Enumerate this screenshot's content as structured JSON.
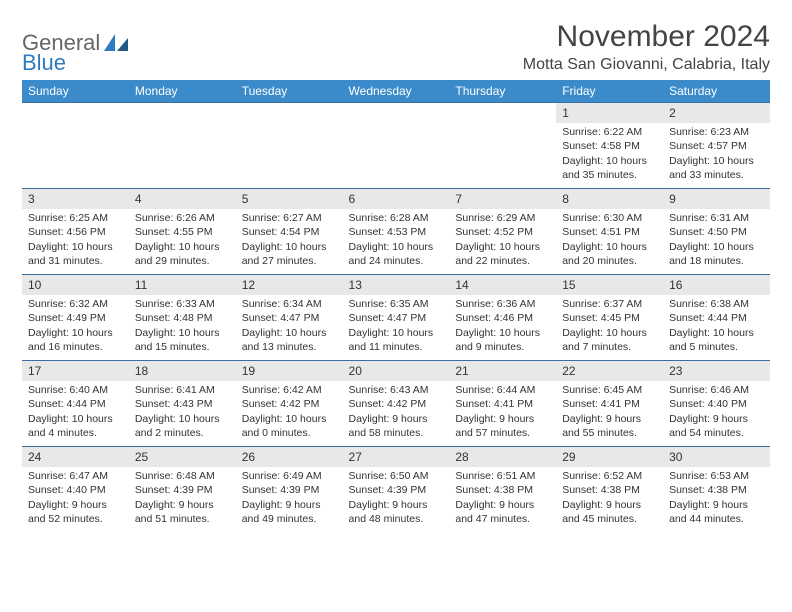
{
  "logo": {
    "line1": "General",
    "line2": "Blue"
  },
  "title": "November 2024",
  "location": "Motta San Giovanni, Calabria, Italy",
  "colors": {
    "header_bg": "#3b8bca",
    "header_fg": "#ffffff",
    "row_border": "#3b6ea0",
    "daynum_bg": "#e8e8e8",
    "logo_blue": "#2f7bbf"
  },
  "weekdays": [
    "Sunday",
    "Monday",
    "Tuesday",
    "Wednesday",
    "Thursday",
    "Friday",
    "Saturday"
  ],
  "weeks": [
    [
      {
        "day": "",
        "lines": [
          "",
          "",
          ""
        ]
      },
      {
        "day": "",
        "lines": [
          "",
          "",
          ""
        ]
      },
      {
        "day": "",
        "lines": [
          "",
          "",
          ""
        ]
      },
      {
        "day": "",
        "lines": [
          "",
          "",
          ""
        ]
      },
      {
        "day": "",
        "lines": [
          "",
          "",
          ""
        ]
      },
      {
        "day": "1",
        "lines": [
          "Sunrise: 6:22 AM",
          "Sunset: 4:58 PM",
          "Daylight: 10 hours and 35 minutes."
        ]
      },
      {
        "day": "2",
        "lines": [
          "Sunrise: 6:23 AM",
          "Sunset: 4:57 PM",
          "Daylight: 10 hours and 33 minutes."
        ]
      }
    ],
    [
      {
        "day": "3",
        "lines": [
          "Sunrise: 6:25 AM",
          "Sunset: 4:56 PM",
          "Daylight: 10 hours and 31 minutes."
        ]
      },
      {
        "day": "4",
        "lines": [
          "Sunrise: 6:26 AM",
          "Sunset: 4:55 PM",
          "Daylight: 10 hours and 29 minutes."
        ]
      },
      {
        "day": "5",
        "lines": [
          "Sunrise: 6:27 AM",
          "Sunset: 4:54 PM",
          "Daylight: 10 hours and 27 minutes."
        ]
      },
      {
        "day": "6",
        "lines": [
          "Sunrise: 6:28 AM",
          "Sunset: 4:53 PM",
          "Daylight: 10 hours and 24 minutes."
        ]
      },
      {
        "day": "7",
        "lines": [
          "Sunrise: 6:29 AM",
          "Sunset: 4:52 PM",
          "Daylight: 10 hours and 22 minutes."
        ]
      },
      {
        "day": "8",
        "lines": [
          "Sunrise: 6:30 AM",
          "Sunset: 4:51 PM",
          "Daylight: 10 hours and 20 minutes."
        ]
      },
      {
        "day": "9",
        "lines": [
          "Sunrise: 6:31 AM",
          "Sunset: 4:50 PM",
          "Daylight: 10 hours and 18 minutes."
        ]
      }
    ],
    [
      {
        "day": "10",
        "lines": [
          "Sunrise: 6:32 AM",
          "Sunset: 4:49 PM",
          "Daylight: 10 hours and 16 minutes."
        ]
      },
      {
        "day": "11",
        "lines": [
          "Sunrise: 6:33 AM",
          "Sunset: 4:48 PM",
          "Daylight: 10 hours and 15 minutes."
        ]
      },
      {
        "day": "12",
        "lines": [
          "Sunrise: 6:34 AM",
          "Sunset: 4:47 PM",
          "Daylight: 10 hours and 13 minutes."
        ]
      },
      {
        "day": "13",
        "lines": [
          "Sunrise: 6:35 AM",
          "Sunset: 4:47 PM",
          "Daylight: 10 hours and 11 minutes."
        ]
      },
      {
        "day": "14",
        "lines": [
          "Sunrise: 6:36 AM",
          "Sunset: 4:46 PM",
          "Daylight: 10 hours and 9 minutes."
        ]
      },
      {
        "day": "15",
        "lines": [
          "Sunrise: 6:37 AM",
          "Sunset: 4:45 PM",
          "Daylight: 10 hours and 7 minutes."
        ]
      },
      {
        "day": "16",
        "lines": [
          "Sunrise: 6:38 AM",
          "Sunset: 4:44 PM",
          "Daylight: 10 hours and 5 minutes."
        ]
      }
    ],
    [
      {
        "day": "17",
        "lines": [
          "Sunrise: 6:40 AM",
          "Sunset: 4:44 PM",
          "Daylight: 10 hours and 4 minutes."
        ]
      },
      {
        "day": "18",
        "lines": [
          "Sunrise: 6:41 AM",
          "Sunset: 4:43 PM",
          "Daylight: 10 hours and 2 minutes."
        ]
      },
      {
        "day": "19",
        "lines": [
          "Sunrise: 6:42 AM",
          "Sunset: 4:42 PM",
          "Daylight: 10 hours and 0 minutes."
        ]
      },
      {
        "day": "20",
        "lines": [
          "Sunrise: 6:43 AM",
          "Sunset: 4:42 PM",
          "Daylight: 9 hours and 58 minutes."
        ]
      },
      {
        "day": "21",
        "lines": [
          "Sunrise: 6:44 AM",
          "Sunset: 4:41 PM",
          "Daylight: 9 hours and 57 minutes."
        ]
      },
      {
        "day": "22",
        "lines": [
          "Sunrise: 6:45 AM",
          "Sunset: 4:41 PM",
          "Daylight: 9 hours and 55 minutes."
        ]
      },
      {
        "day": "23",
        "lines": [
          "Sunrise: 6:46 AM",
          "Sunset: 4:40 PM",
          "Daylight: 9 hours and 54 minutes."
        ]
      }
    ],
    [
      {
        "day": "24",
        "lines": [
          "Sunrise: 6:47 AM",
          "Sunset: 4:40 PM",
          "Daylight: 9 hours and 52 minutes."
        ]
      },
      {
        "day": "25",
        "lines": [
          "Sunrise: 6:48 AM",
          "Sunset: 4:39 PM",
          "Daylight: 9 hours and 51 minutes."
        ]
      },
      {
        "day": "26",
        "lines": [
          "Sunrise: 6:49 AM",
          "Sunset: 4:39 PM",
          "Daylight: 9 hours and 49 minutes."
        ]
      },
      {
        "day": "27",
        "lines": [
          "Sunrise: 6:50 AM",
          "Sunset: 4:39 PM",
          "Daylight: 9 hours and 48 minutes."
        ]
      },
      {
        "day": "28",
        "lines": [
          "Sunrise: 6:51 AM",
          "Sunset: 4:38 PM",
          "Daylight: 9 hours and 47 minutes."
        ]
      },
      {
        "day": "29",
        "lines": [
          "Sunrise: 6:52 AM",
          "Sunset: 4:38 PM",
          "Daylight: 9 hours and 45 minutes."
        ]
      },
      {
        "day": "30",
        "lines": [
          "Sunrise: 6:53 AM",
          "Sunset: 4:38 PM",
          "Daylight: 9 hours and 44 minutes."
        ]
      }
    ]
  ]
}
